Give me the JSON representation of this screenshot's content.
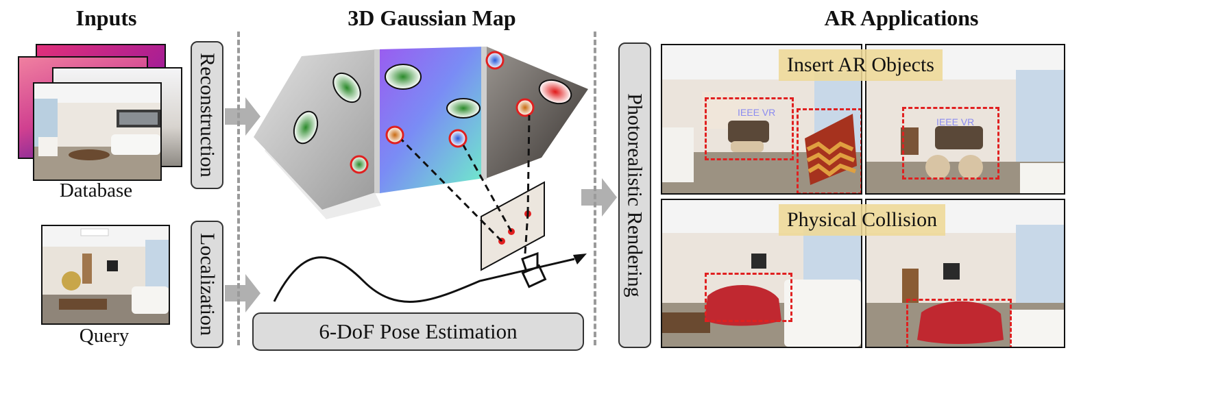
{
  "headings": {
    "inputs": "Inputs",
    "map": "3D Gaussian Map",
    "ar": "AR Applications"
  },
  "inputs": {
    "database_label": "Database",
    "query_label": "Query"
  },
  "stages": {
    "reconstruction": "Reconstruction",
    "localization": "Localization",
    "rendering": "Photorealistic Rendering",
    "pose": "6-DoF Pose Estimation"
  },
  "ar": {
    "insert_label": "Insert AR Objects",
    "collision_label": "Physical Collision",
    "wall_text_1": "IEEE VR",
    "wall_text_2": "IEEE VR"
  },
  "colors": {
    "arrow": "#b0b0b0",
    "pill_fill": "#dcdcdc",
    "dash_box": "#e02020",
    "keypoint": "#e02020",
    "overlay": "#eed896"
  }
}
